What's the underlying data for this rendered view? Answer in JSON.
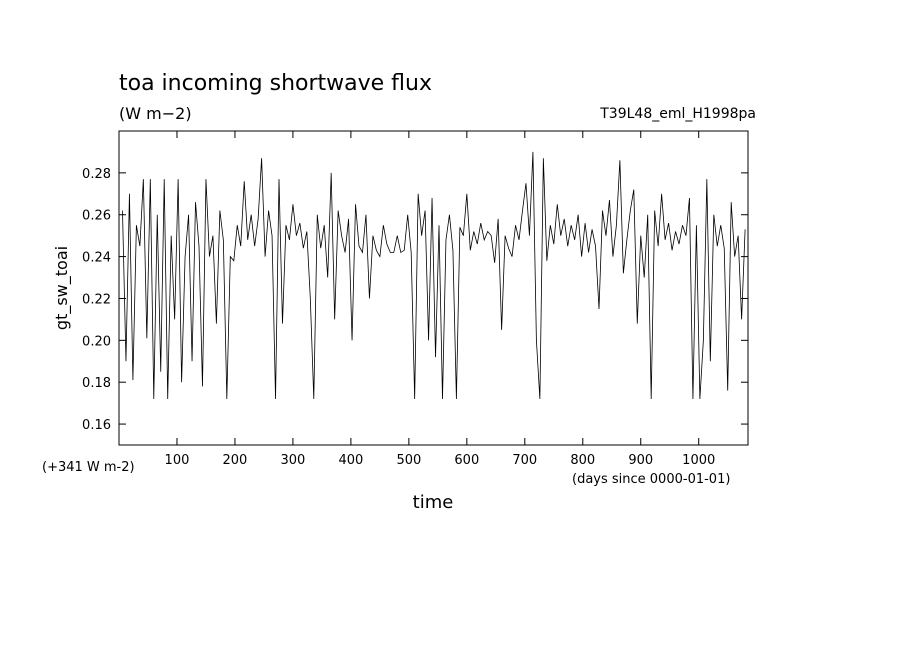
{
  "chart_data": {
    "type": "line",
    "title": "toa incoming shortwave flux",
    "subtitle": "(W m−2)",
    "run_label": "T39L48_eml_H1998pa",
    "y_label": "gt_sw_toai",
    "y_offset_label": "(+341 W m-2)",
    "x_units_label": "(days since 0000-01-01)",
    "x_label": "time",
    "color": "#000000",
    "xlim": [
      0,
      1085
    ],
    "ylim": [
      0.15,
      0.3
    ],
    "xticks": [
      100,
      200,
      300,
      400,
      500,
      600,
      700,
      800,
      900,
      1000
    ],
    "yticks": [
      0.16,
      0.18,
      {
        "value": 0.2,
        "label": "0.20"
      },
      0.22,
      0.24,
      0.26,
      0.28
    ],
    "x": [
      6,
      12,
      18,
      24,
      30,
      36,
      42,
      48,
      54,
      60,
      66,
      72,
      78,
      84,
      90,
      96,
      102,
      108,
      114,
      120,
      126,
      132,
      138,
      144,
      150,
      156,
      162,
      168,
      174,
      180,
      186,
      192,
      198,
      204,
      210,
      216,
      222,
      228,
      234,
      240,
      246,
      252,
      258,
      264,
      270,
      276,
      282,
      288,
      294,
      300,
      306,
      312,
      318,
      324,
      330,
      336,
      342,
      348,
      354,
      360,
      366,
      372,
      378,
      384,
      390,
      396,
      402,
      408,
      414,
      420,
      426,
      432,
      438,
      444,
      450,
      456,
      462,
      468,
      474,
      480,
      486,
      492,
      498,
      504,
      510,
      516,
      522,
      528,
      534,
      540,
      546,
      552,
      558,
      564,
      570,
      576,
      582,
      588,
      594,
      600,
      606,
      612,
      618,
      624,
      630,
      636,
      642,
      648,
      654,
      660,
      666,
      672,
      678,
      684,
      690,
      696,
      702,
      708,
      714,
      720,
      726,
      732,
      738,
      744,
      750,
      756,
      762,
      768,
      774,
      780,
      786,
      792,
      798,
      804,
      810,
      816,
      822,
      828,
      834,
      840,
      846,
      852,
      858,
      864,
      870,
      876,
      882,
      888,
      894,
      900,
      906,
      912,
      918,
      924,
      930,
      936,
      942,
      948,
      954,
      960,
      966,
      972,
      978,
      984,
      990,
      996,
      1002,
      1008,
      1014,
      1020,
      1026,
      1032,
      1038,
      1044,
      1050,
      1056,
      1062,
      1068,
      1074,
      1080
    ],
    "values": [
      0.262,
      0.19,
      0.27,
      0.181,
      0.255,
      0.245,
      0.277,
      0.201,
      0.277,
      0.172,
      0.26,
      0.185,
      0.277,
      0.172,
      0.25,
      0.21,
      0.277,
      0.18,
      0.24,
      0.26,
      0.19,
      0.266,
      0.245,
      0.178,
      0.277,
      0.24,
      0.25,
      0.208,
      0.262,
      0.248,
      0.172,
      0.24,
      0.238,
      0.255,
      0.245,
      0.276,
      0.248,
      0.26,
      0.245,
      0.258,
      0.287,
      0.24,
      0.262,
      0.25,
      0.172,
      0.277,
      0.208,
      0.255,
      0.248,
      0.265,
      0.25,
      0.256,
      0.244,
      0.252,
      0.22,
      0.172,
      0.26,
      0.244,
      0.255,
      0.23,
      0.28,
      0.21,
      0.262,
      0.25,
      0.242,
      0.258,
      0.2,
      0.265,
      0.245,
      0.242,
      0.26,
      0.22,
      0.25,
      0.243,
      0.24,
      0.255,
      0.246,
      0.242,
      0.242,
      0.25,
      0.242,
      0.243,
      0.26,
      0.242,
      0.172,
      0.27,
      0.25,
      0.262,
      0.2,
      0.268,
      0.192,
      0.255,
      0.172,
      0.248,
      0.26,
      0.243,
      0.172,
      0.254,
      0.25,
      0.27,
      0.243,
      0.252,
      0.246,
      0.256,
      0.248,
      0.252,
      0.25,
      0.237,
      0.258,
      0.205,
      0.25,
      0.244,
      0.24,
      0.255,
      0.248,
      0.262,
      0.275,
      0.25,
      0.29,
      0.2,
      0.172,
      0.287,
      0.238,
      0.255,
      0.246,
      0.265,
      0.25,
      0.258,
      0.245,
      0.255,
      0.248,
      0.26,
      0.24,
      0.256,
      0.242,
      0.253,
      0.245,
      0.215,
      0.262,
      0.25,
      0.267,
      0.24,
      0.255,
      0.286,
      0.232,
      0.248,
      0.262,
      0.272,
      0.208,
      0.25,
      0.23,
      0.26,
      0.172,
      0.262,
      0.245,
      0.27,
      0.248,
      0.256,
      0.243,
      0.252,
      0.246,
      0.255,
      0.25,
      0.268,
      0.172,
      0.255,
      0.172,
      0.2,
      0.277,
      0.19,
      0.26,
      0.245,
      0.255,
      0.244,
      0.176,
      0.266,
      0.24,
      0.25,
      0.21,
      0.253
    ]
  }
}
